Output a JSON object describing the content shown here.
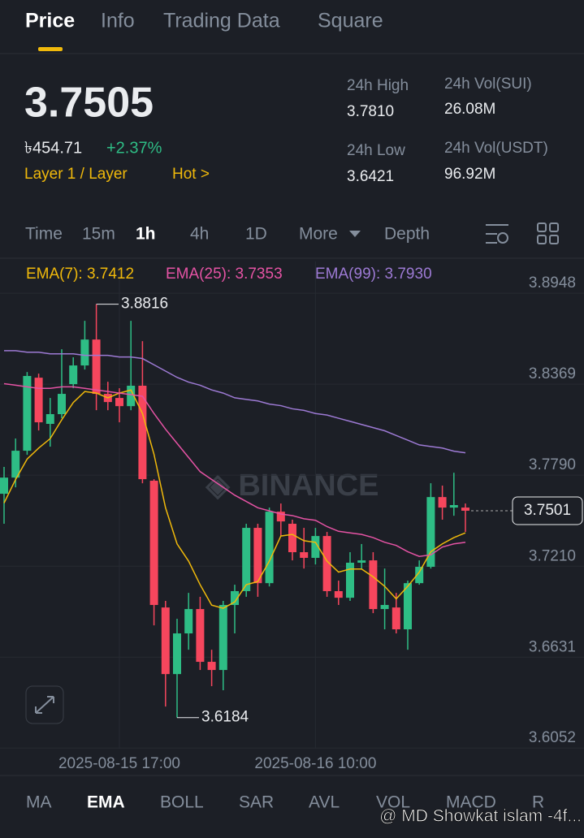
{
  "tabs": [
    "Price",
    "Info",
    "Trading Data",
    "Square"
  ],
  "price": {
    "last": "3.7505",
    "fiat": "৳454.71",
    "change": "+2.37%",
    "sector": "Layer 1 / Layer",
    "hot": "Hot >"
  },
  "stats": [
    {
      "label": "24h High",
      "value": "3.7810"
    },
    {
      "label": "24h Low",
      "value": "3.6421"
    },
    {
      "label": "24h Vol(SUI)",
      "value": "26.08M"
    },
    {
      "label": "24h Vol(USDT)",
      "value": "96.92M"
    }
  ],
  "intervals": [
    "Time",
    "15m",
    "1h",
    "4h",
    "1D",
    "More",
    "Depth"
  ],
  "chart_data": {
    "type": "candlestick",
    "categories": [
      null,
      null,
      null,
      null,
      null,
      null,
      null,
      null,
      null,
      null,
      "2025-08-15 17:00",
      null,
      null,
      null,
      null,
      null,
      null,
      null,
      null,
      null,
      null,
      null,
      null,
      null,
      null,
      null,
      null,
      "2025-08-16 10:00",
      null,
      null,
      null,
      null,
      null,
      null,
      null,
      null,
      null,
      null,
      null,
      null,
      null
    ],
    "open": [
      3.7609,
      3.7712,
      3.7883,
      3.8348,
      3.8054,
      3.8116,
      3.8307,
      3.8426,
      3.8591,
      3.8245,
      3.8219,
      3.8167,
      3.8297,
      3.7692,
      3.6885,
      3.6461,
      3.672,
      3.6875,
      3.6539,
      3.6487,
      3.6901,
      3.6989,
      3.7392,
      3.704,
      3.7495,
      3.7418,
      3.7237,
      3.7201,
      3.734,
      3.6989,
      3.6947,
      3.717,
      3.7185,
      3.6875,
      3.6885,
      3.6746,
      3.704,
      3.7144,
      3.7588,
      3.7521,
      3.7521
    ],
    "high": [
      3.778,
      3.7961,
      3.8384,
      3.8374,
      3.8219,
      3.8529,
      3.8478,
      3.871,
      3.8816,
      3.8322,
      3.8281,
      3.871,
      3.8581,
      3.7702,
      3.6927,
      3.6813,
      3.6978,
      3.6953,
      3.6616,
      3.6927,
      3.703,
      3.7418,
      3.7418,
      3.7521,
      3.7547,
      3.7444,
      3.7392,
      3.7392,
      3.7366,
      3.7056,
      3.7237,
      3.7289,
      3.7237,
      3.7133,
      3.6978,
      3.7056,
      3.7185,
      3.7676,
      3.7661,
      3.7743,
      3.7547
    ],
    "low": [
      3.7418,
      3.765,
      3.7857,
      3.8012,
      3.7909,
      3.809,
      3.8281,
      3.84,
      3.8141,
      3.8141,
      3.8064,
      3.8141,
      3.7676,
      3.6771,
      3.6254,
      3.6184,
      3.6616,
      3.6487,
      3.6384,
      3.6358,
      3.672,
      3.6953,
      3.6953,
      3.7019,
      3.734,
      3.7185,
      3.7133,
      3.7159,
      3.6953,
      3.6901,
      3.6927,
      3.7133,
      3.6849,
      3.6746,
      3.672,
      3.6616,
      3.703,
      3.7133,
      3.7444,
      3.7469,
      3.7366
    ],
    "close": [
      3.7712,
      3.7883,
      3.8359,
      3.8064,
      3.8116,
      3.8245,
      3.8426,
      3.8591,
      3.8245,
      3.8193,
      3.8167,
      3.8297,
      3.7702,
      3.6901,
      3.6461,
      3.672,
      3.6875,
      3.6539,
      3.6487,
      3.6901,
      3.6989,
      3.7392,
      3.704,
      3.7495,
      3.7433,
      3.7237,
      3.7201,
      3.734,
      3.6989,
      3.6947,
      3.717,
      3.7185,
      3.6875,
      3.6901,
      3.6746,
      3.704,
      3.7144,
      3.7588,
      3.7521,
      3.7537,
      3.7501
    ],
    "up_color": "#2ebd85",
    "down_color": "#f6465d",
    "ema": [
      {
        "label": "EMA(7): 3.7412",
        "color": "#f0b90b",
        "values": [
          3.755,
          3.77,
          3.783,
          3.79,
          3.796,
          3.808,
          3.819,
          3.826,
          3.825,
          3.822,
          3.825,
          3.827,
          3.812,
          3.786,
          3.752,
          3.729,
          3.718,
          3.703,
          3.69,
          3.688,
          3.692,
          3.703,
          3.705,
          3.718,
          3.734,
          3.735,
          3.731,
          3.73,
          3.718,
          3.711,
          3.713,
          3.713,
          3.708,
          3.702,
          3.694,
          3.702,
          3.711,
          3.724,
          3.729,
          3.733,
          3.736
        ]
      },
      {
        "label": "EMA(25): 3.7353",
        "color": "#e553a4",
        "values": [
          3.831,
          3.83,
          3.829,
          3.828,
          3.828,
          3.829,
          3.829,
          3.828,
          3.827,
          3.826,
          3.825,
          3.824,
          3.823,
          3.812,
          3.802,
          3.793,
          3.784,
          3.775,
          3.77,
          3.765,
          3.76,
          3.756,
          3.752,
          3.75,
          3.748,
          3.747,
          3.745,
          3.744,
          3.74,
          3.737,
          3.736,
          3.735,
          3.733,
          3.73,
          3.728,
          3.724,
          3.721,
          3.722,
          3.727,
          3.729,
          3.73
        ]
      },
      {
        "label": "EMA(99): 3.7930",
        "color": "#9d7ad4",
        "values": [
          3.852,
          3.852,
          3.851,
          3.851,
          3.85,
          3.85,
          3.85,
          3.849,
          3.849,
          3.849,
          3.848,
          3.848,
          3.847,
          3.843,
          3.839,
          3.835,
          3.832,
          3.83,
          3.827,
          3.825,
          3.822,
          3.821,
          3.82,
          3.818,
          3.817,
          3.815,
          3.814,
          3.812,
          3.811,
          3.809,
          3.807,
          3.805,
          3.803,
          3.801,
          3.798,
          3.795,
          3.792,
          3.791,
          3.79,
          3.788,
          3.787
        ]
      }
    ],
    "ylim": [
      3.5986,
      3.9088
    ],
    "yticks": [
      3.8948,
      3.8369,
      {
        "value": 3.779,
        "label": "3.7790"
      },
      {
        "value": 3.721,
        "label": "3.7210"
      },
      3.6631,
      3.6052
    ],
    "max_label": 3.8816,
    "min_label": 3.6184,
    "last_price": 3.7501,
    "grid": true
  },
  "indicators": [
    "MA",
    "EMA",
    "BOLL",
    "SAR",
    "AVL",
    "VOL",
    "MACD",
    "R"
  ],
  "watermark": "@ MD Showkat islam -4f..."
}
